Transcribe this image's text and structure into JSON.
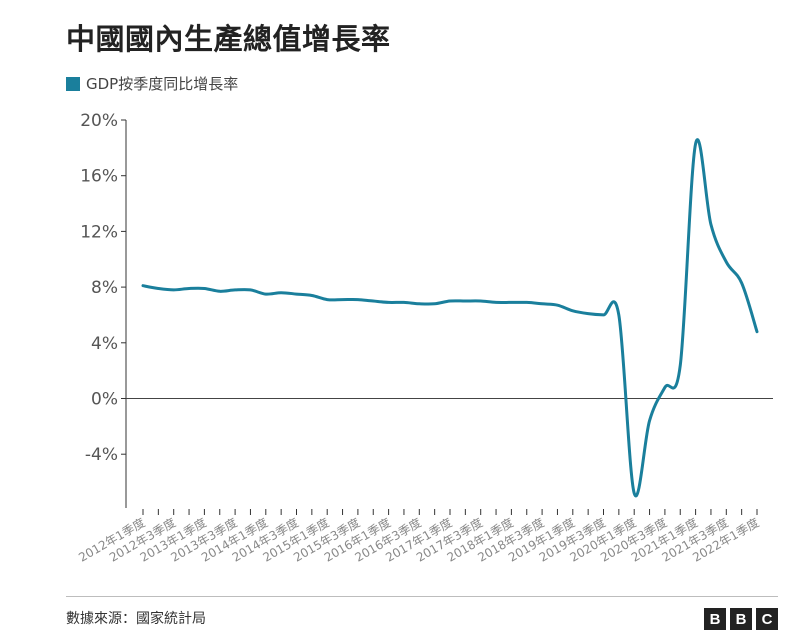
{
  "header": {
    "title": "中國國內生產總值增長率"
  },
  "legend": {
    "label": "GDP按季度同比增長率",
    "color": "#1a7f9c"
  },
  "footer": {
    "source": "數據來源：國家統計局",
    "logo_letters": [
      "B",
      "B",
      "C"
    ]
  },
  "chart_data": {
    "type": "line",
    "title": "中國國內生產總值增長率",
    "xlabel": "",
    "ylabel": "",
    "ylim": [
      -8,
      20
    ],
    "yticks": [
      20,
      16,
      12,
      8,
      4,
      0,
      -4
    ],
    "ytick_labels": [
      "20%",
      "16%",
      "12%",
      "8%",
      "4%",
      "0%",
      "-4%"
    ],
    "x_tick_labels": [
      "2012年1季度",
      "2012年3季度",
      "2013年1季度",
      "2013年3季度",
      "2014年1季度",
      "2014年3季度",
      "2015年1季度",
      "2015年3季度",
      "2016年1季度",
      "2016年3季度",
      "2017年1季度",
      "2017年3季度",
      "2018年1季度",
      "2018年3季度",
      "2019年1季度",
      "2019年3季度",
      "2020年1季度",
      "2020年3季度",
      "2021年1季度",
      "2021年3季度",
      "2022年1季度"
    ],
    "grid": false,
    "legend_position": "top-left",
    "series": [
      {
        "name": "GDP按季度同比增長率",
        "color": "#1a7f9c",
        "values": [
          8.1,
          7.9,
          7.8,
          7.9,
          7.9,
          7.7,
          7.8,
          7.8,
          7.5,
          7.6,
          7.5,
          7.4,
          7.1,
          7.1,
          7.1,
          7.0,
          6.9,
          6.9,
          6.8,
          6.8,
          7.0,
          7.0,
          7.0,
          6.9,
          6.9,
          6.9,
          6.8,
          6.7,
          6.3,
          6.1,
          6.0,
          6.0,
          -6.8,
          -1.6,
          0.8,
          2.4,
          18.3,
          12.5,
          9.8,
          8.3,
          4.8
        ]
      }
    ]
  }
}
